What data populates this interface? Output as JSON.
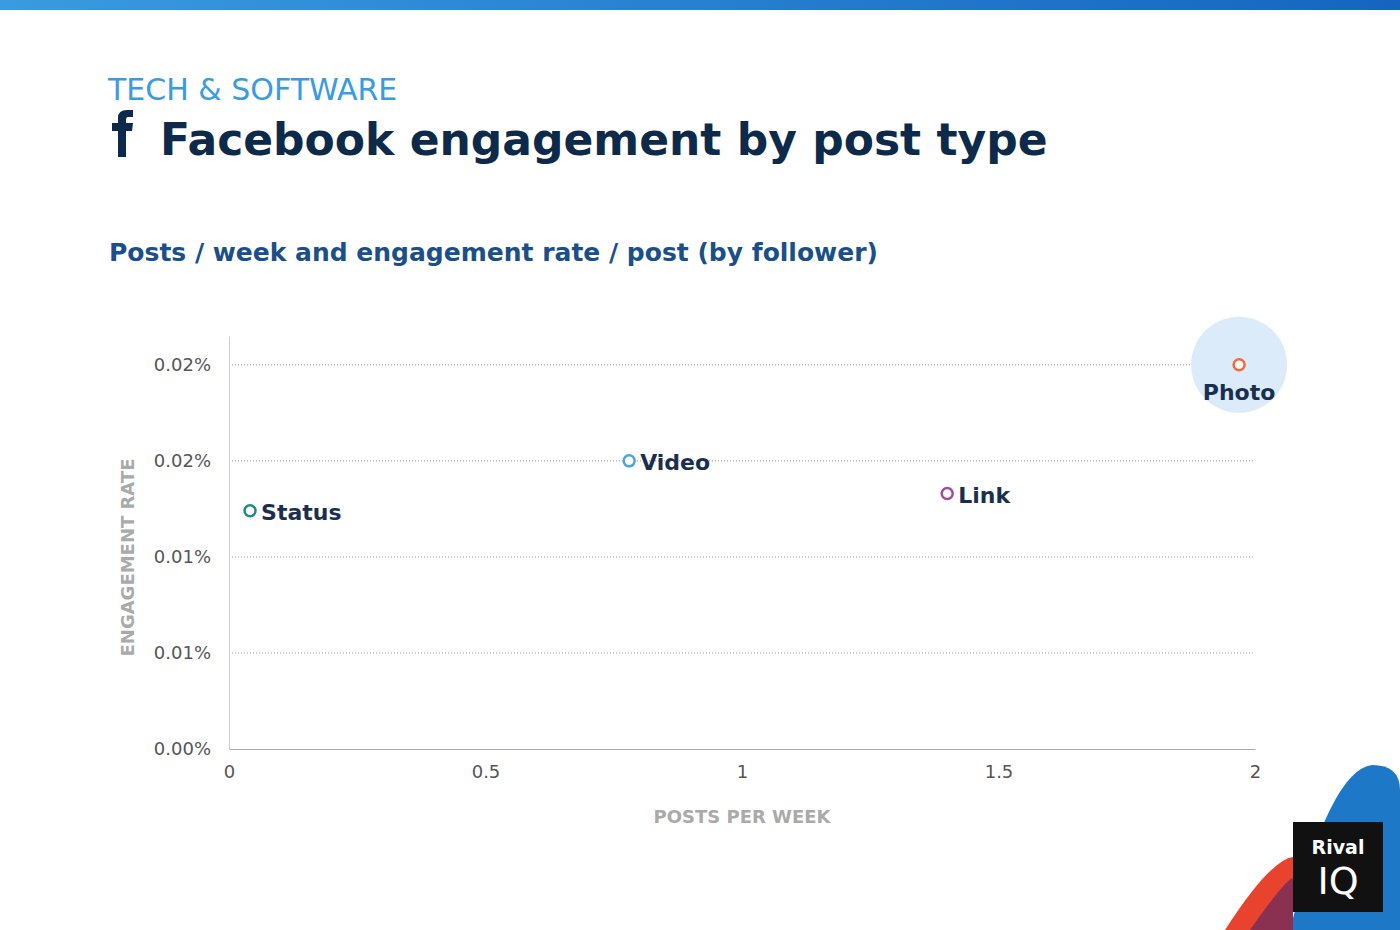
{
  "chart_data": {
    "type": "scatter",
    "supertitle": "TECH & SOFTWARE",
    "title": "Facebook engagement by post type",
    "subtitle": "Posts / week and engagement rate / post (by follower)",
    "x_label": "POSTS PER WEEK",
    "y_label": "ENGAGEMENT RATE",
    "categories": [
      "Status",
      "Video",
      "Link",
      "Photo"
    ],
    "x": [
      0.041,
      0.78,
      1.4,
      1.969
    ],
    "values": [
      0.0124,
      0.015,
      0.0133,
      0.02
    ],
    "colors": [
      "#1a8c8c",
      "#4da3e8",
      "#a04ca0",
      "#f26b3a"
    ],
    "marker": "circle",
    "xlim": [
      0,
      2
    ],
    "xticks": [
      0,
      0.5,
      1,
      1.5,
      2
    ],
    "ylim": [
      0,
      0.0215
    ],
    "yticks": [
      {
        "value": 0,
        "label": "0.00%"
      },
      {
        "value": 0.005,
        "label": "0.01%"
      },
      {
        "value": 0.01,
        "label": "0.01%"
      },
      {
        "value": 0.015,
        "label": "0.02%"
      },
      {
        "value": 0.02,
        "label": "0.02%"
      }
    ],
    "grid": true,
    "logo": [
      "Rival",
      "IQ"
    ]
  }
}
